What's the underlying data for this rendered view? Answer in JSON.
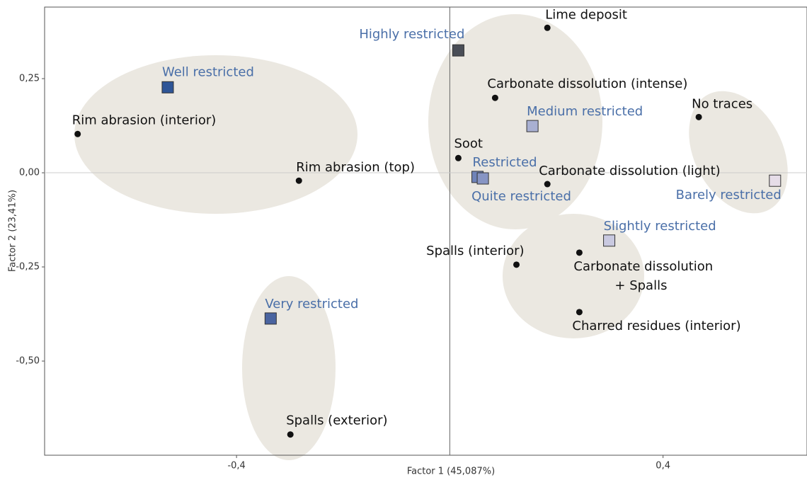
{
  "chart_data": {
    "type": "scatter",
    "xlabel": "Factor 1 (45,087%)",
    "ylabel": "Factor 2 (23,41%)",
    "xlim": [
      -0.76,
      0.67
    ],
    "ylim": [
      -0.75,
      0.44
    ],
    "xticks": [
      {
        "value": -0.4,
        "label": "-0,4"
      },
      {
        "value": 0.4,
        "label": "0,4"
      }
    ],
    "yticks": [
      {
        "value": 0.25,
        "label": "0,25"
      },
      {
        "value": 0,
        "label": "0,00"
      },
      {
        "value": -0.25,
        "label": "-0,25"
      },
      {
        "value": -0.5,
        "label": "-0,50"
      }
    ],
    "series": [
      {
        "marker": "circle",
        "color": "#111111",
        "label_color": "#111111",
        "points": [
          {
            "label": "Lime deposit",
            "x": 0.183,
            "y": 0.385
          },
          {
            "label": "Carbonate dissolution (intense)",
            "x": 0.085,
            "y": 0.199
          },
          {
            "label": "No traces",
            "x": 0.467,
            "y": 0.148
          },
          {
            "label": "Rim abrasion (interior)",
            "x": -0.698,
            "y": 0.103
          },
          {
            "label": "Soot",
            "x": 0.016,
            "y": 0.039
          },
          {
            "label": "Rim abrasion (top)",
            "x": -0.283,
            "y": -0.021
          },
          {
            "label": "Carbonate dissolution (light)",
            "x": 0.183,
            "y": -0.03
          },
          {
            "label": "Spalls (interior)",
            "x": 0.125,
            "y": -0.244
          },
          {
            "label": [
              "Carbonate dissolution",
              "+ Spalls"
            ],
            "x": 0.243,
            "y": -0.212
          },
          {
            "label": "Charred residues (interior)",
            "x": 0.243,
            "y": -0.37
          },
          {
            "label": "Spalls (exterior)",
            "x": -0.299,
            "y": -0.695
          }
        ]
      },
      {
        "marker": "square",
        "label_color": "#4a6fa8",
        "points": [
          {
            "label": "Highly restricted",
            "x": 0.016,
            "y": 0.325,
            "color": "#4a4e57"
          },
          {
            "label": "Well restricted",
            "x": -0.529,
            "y": 0.227,
            "color": "#2e5597"
          },
          {
            "label": "Medium restricted",
            "x": 0.155,
            "y": 0.124,
            "color": "#a9b0d2"
          },
          {
            "label": "Restricted",
            "x": 0.052,
            "y": -0.011,
            "color": "#6f83b9"
          },
          {
            "label": "Quite restricted",
            "x": 0.062,
            "y": -0.015,
            "color": "#8795c4"
          },
          {
            "label": "Barely restricted",
            "x": 0.61,
            "y": -0.021,
            "color": "#e6dde8"
          },
          {
            "label": "Slightly restricted",
            "x": 0.299,
            "y": -0.18,
            "color": "#c9c9e0"
          },
          {
            "label": "Very restricted",
            "x": -0.336,
            "y": -0.387,
            "color": "#4a64a0"
          }
        ]
      }
    ]
  }
}
